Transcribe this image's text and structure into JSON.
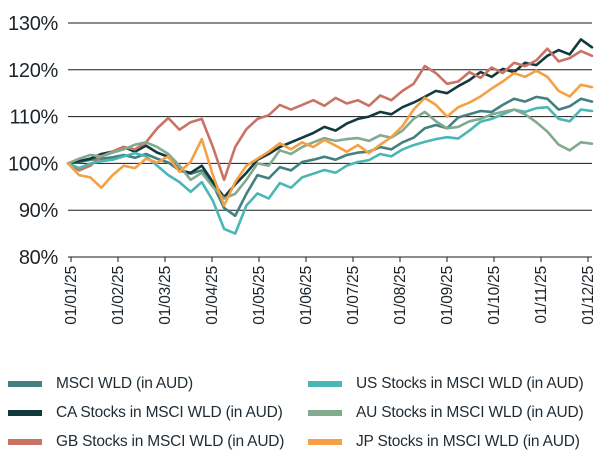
{
  "chart_data": {
    "type": "line",
    "title": "",
    "xlabel": "",
    "ylabel": "",
    "ylim": [
      80,
      130
    ],
    "ytick_step": 10,
    "ytick_suffix": "%",
    "grid": "horizontal-only",
    "legend_position": "bottom-two-columns",
    "axis_color": "#1a1a1a",
    "label_color": "#1c242a",
    "background_color": "#ffffff",
    "categories": [
      "01/01/25",
      "01/02/25",
      "01/03/25",
      "01/04/25",
      "01/05/25",
      "01/06/25",
      "01/07/25",
      "01/08/25",
      "01/09/25",
      "01/10/25",
      "01/11/25",
      "01/12/25"
    ],
    "series": [
      {
        "name": "MSCI WLD (in AUD)",
        "color": "#44807f",
        "values": [
          100,
          100.3,
          100.8,
          101,
          101.3,
          101.8,
          101.2,
          102,
          101,
          100.2,
          98.5,
          97.8,
          98.5,
          95.5,
          90.5,
          88.8,
          93.5,
          97.5,
          96.8,
          99.2,
          98.5,
          100.3,
          100.8,
          101.4,
          100.8,
          101.8,
          102.3,
          102.5,
          103.5,
          103,
          104.5,
          105.5,
          107.5,
          108.2,
          107.5,
          109.8,
          110.5,
          111.2,
          111,
          112.5,
          113.8,
          113.2,
          114.2,
          113.8,
          111.5,
          112.2,
          113.8,
          113.2
        ]
      },
      {
        "name": "CA Stocks in MSCI WLD (in AUD)",
        "color": "#123a3d",
        "values": [
          100,
          100.5,
          101,
          102,
          102.5,
          103.5,
          102.5,
          103.8,
          102.3,
          101.4,
          98.5,
          98,
          99.5,
          96,
          92.8,
          95.5,
          98,
          100.8,
          102,
          103.5,
          104.5,
          105.5,
          106.5,
          107.8,
          107,
          108.5,
          109.5,
          110,
          111,
          110.5,
          112,
          113,
          114.2,
          115.5,
          115,
          116.5,
          117.8,
          119.5,
          118.5,
          120.2,
          119.5,
          121.5,
          121,
          123,
          124.2,
          123.3,
          126.5,
          124.8
        ]
      },
      {
        "name": "GB Stocks in MSCI WLD (in AUD)",
        "color": "#c97365",
        "values": [
          100,
          98.5,
          99.5,
          101.5,
          102.5,
          103.5,
          103,
          104.5,
          107.5,
          109.7,
          107.2,
          108.8,
          109.5,
          103.5,
          96.5,
          103.5,
          107.3,
          109.5,
          110.3,
          112.5,
          111.5,
          112.5,
          113.5,
          112.3,
          114,
          112.8,
          113.5,
          112.3,
          114.5,
          113.5,
          115.5,
          117,
          120.8,
          119.3,
          117,
          117.5,
          119.5,
          118.3,
          120.5,
          119.3,
          121.5,
          120.8,
          122,
          124.5,
          121.8,
          122.5,
          124,
          123
        ]
      },
      {
        "name": "US Stocks in MSCI WLD (in AUD)",
        "color": "#4ab6b6",
        "values": [
          100,
          99,
          100,
          100.5,
          100.8,
          101.5,
          102.2,
          101.5,
          99.5,
          97.5,
          96,
          93.9,
          96,
          92,
          86,
          85,
          91,
          93.6,
          92.5,
          95.8,
          94.8,
          97,
          97.8,
          98.6,
          98,
          99.5,
          100.3,
          100.7,
          102,
          101.5,
          103,
          103.9,
          104.6,
          105.2,
          105.6,
          105.3,
          107,
          108.9,
          109.5,
          110.5,
          111.5,
          111,
          111.8,
          112,
          109.5,
          109,
          111.5,
          111.2
        ]
      },
      {
        "name": "AU Stocks in MSCI WLD (in AUD)",
        "color": "#82aa8e",
        "values": [
          100,
          101,
          101.8,
          101.5,
          102.3,
          103,
          104,
          104.5,
          103.5,
          102,
          99.5,
          96.5,
          98,
          95,
          92.5,
          93.5,
          96.5,
          100,
          99.5,
          102.8,
          102,
          103.5,
          104.5,
          105.4,
          104.8,
          105.2,
          105.4,
          104.8,
          106,
          105.5,
          107,
          109.5,
          111,
          109,
          107.5,
          107.8,
          109,
          109.5,
          110.5,
          111,
          111.5,
          110.5,
          108.8,
          106.8,
          104,
          102.8,
          104.5,
          104.2
        ]
      },
      {
        "name": "JP Stocks in MSCI WLD (in AUD)",
        "color": "#f5a044",
        "values": [
          100,
          97.5,
          97,
          94.8,
          97.5,
          99.5,
          99,
          101,
          100.2,
          101.5,
          98.2,
          100.3,
          105.2,
          97.5,
          91,
          96,
          99.5,
          101,
          102.5,
          104.3,
          103,
          104.5,
          103.5,
          105,
          103.8,
          102.5,
          103.9,
          102.2,
          104,
          105.6,
          108,
          111.5,
          114,
          112.5,
          110,
          112,
          113,
          114.3,
          116,
          117.5,
          119.3,
          118.5,
          119.8,
          118.5,
          115.5,
          114.3,
          116.8,
          116.3
        ]
      }
    ]
  }
}
